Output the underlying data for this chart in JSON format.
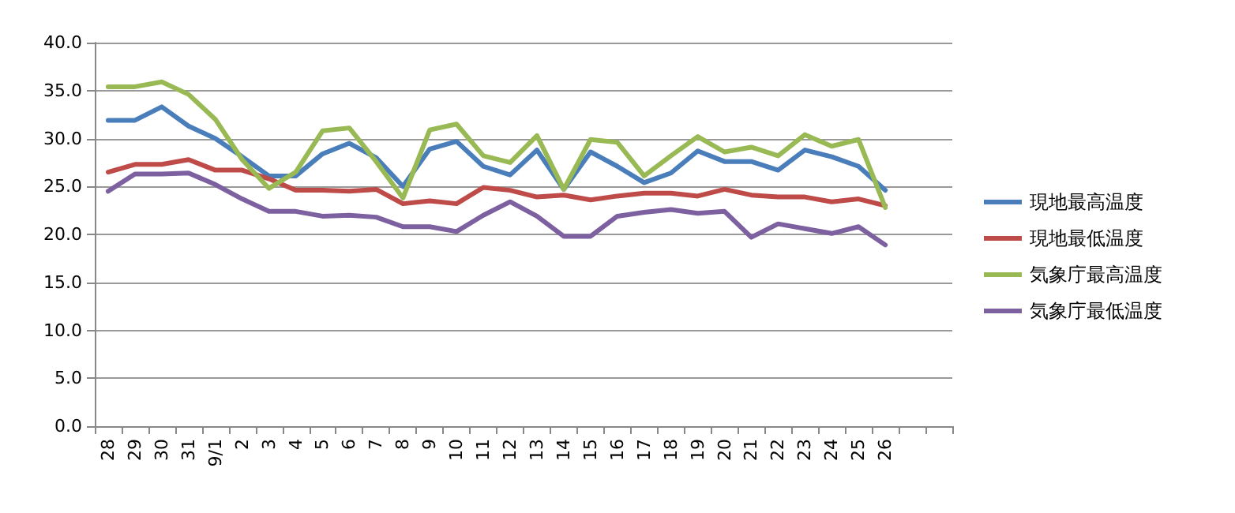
{
  "chart_data": {
    "type": "line",
    "categories": [
      "28",
      "29",
      "30",
      "31",
      "9/1",
      "2",
      "3",
      "4",
      "5",
      "6",
      "7",
      "8",
      "9",
      "10",
      "11",
      "12",
      "13",
      "14",
      "15",
      "16",
      "17",
      "18",
      "19",
      "20",
      "21",
      "22",
      "23",
      "24",
      "25",
      "26",
      null,
      null
    ],
    "series": [
      {
        "name": "現地最高温度",
        "color": "#4a7ebb",
        "values": [
          31.9,
          31.9,
          33.3,
          31.3,
          30.0,
          28.1,
          26.1,
          26.1,
          28.4,
          29.5,
          28.0,
          25.0,
          28.9,
          29.7,
          27.1,
          26.2,
          28.8,
          24.7,
          28.6,
          27.1,
          25.4,
          26.4,
          28.7,
          27.6,
          27.6,
          26.7,
          28.8,
          28.1,
          27.1,
          24.6,
          null,
          null
        ]
      },
      {
        "name": "現地最低温度",
        "color": "#be4b48",
        "values": [
          26.5,
          27.3,
          27.3,
          27.8,
          26.7,
          26.7,
          25.8,
          24.6,
          24.6,
          24.5,
          24.7,
          23.2,
          23.5,
          23.2,
          24.9,
          24.6,
          23.9,
          24.1,
          23.6,
          24.0,
          24.3,
          24.3,
          24.0,
          24.7,
          24.1,
          23.9,
          23.9,
          23.4,
          23.7,
          23.0,
          null,
          null
        ]
      },
      {
        "name": "気象庁最高温度",
        "color": "#98b954",
        "values": [
          35.4,
          35.4,
          35.9,
          34.6,
          32.0,
          27.8,
          24.8,
          26.5,
          30.8,
          31.1,
          27.6,
          23.8,
          30.9,
          31.5,
          28.2,
          27.5,
          30.3,
          24.7,
          29.9,
          29.6,
          26.1,
          28.2,
          30.2,
          28.6,
          29.1,
          28.2,
          30.4,
          29.2,
          29.9,
          22.8,
          null,
          null
        ]
      },
      {
        "name": "気象庁最低温度",
        "color": "#7d60a0",
        "values": [
          24.5,
          26.3,
          26.3,
          26.4,
          25.2,
          23.7,
          22.4,
          22.4,
          21.9,
          22.0,
          21.8,
          20.8,
          20.8,
          20.3,
          22.0,
          23.4,
          21.9,
          19.8,
          19.8,
          21.9,
          22.3,
          22.6,
          22.2,
          22.4,
          19.7,
          21.1,
          20.6,
          20.1,
          20.8,
          18.9,
          null,
          null
        ]
      }
    ],
    "ylim": [
      0,
      40
    ],
    "yticks": [
      {
        "value": 0,
        "label": "0.0"
      },
      {
        "value": 5,
        "label": "5.0"
      },
      {
        "value": 10,
        "label": "10.0"
      },
      {
        "value": 15,
        "label": "15.0"
      },
      {
        "value": 20,
        "label": "20.0"
      },
      {
        "value": 25,
        "label": "25.0"
      },
      {
        "value": 30,
        "label": "30.0"
      },
      {
        "value": 35,
        "label": "35.0"
      },
      {
        "value": 40,
        "label": "40.0"
      }
    ],
    "grid": "y",
    "legend": "right",
    "marker": "none",
    "line_style": "solid"
  }
}
